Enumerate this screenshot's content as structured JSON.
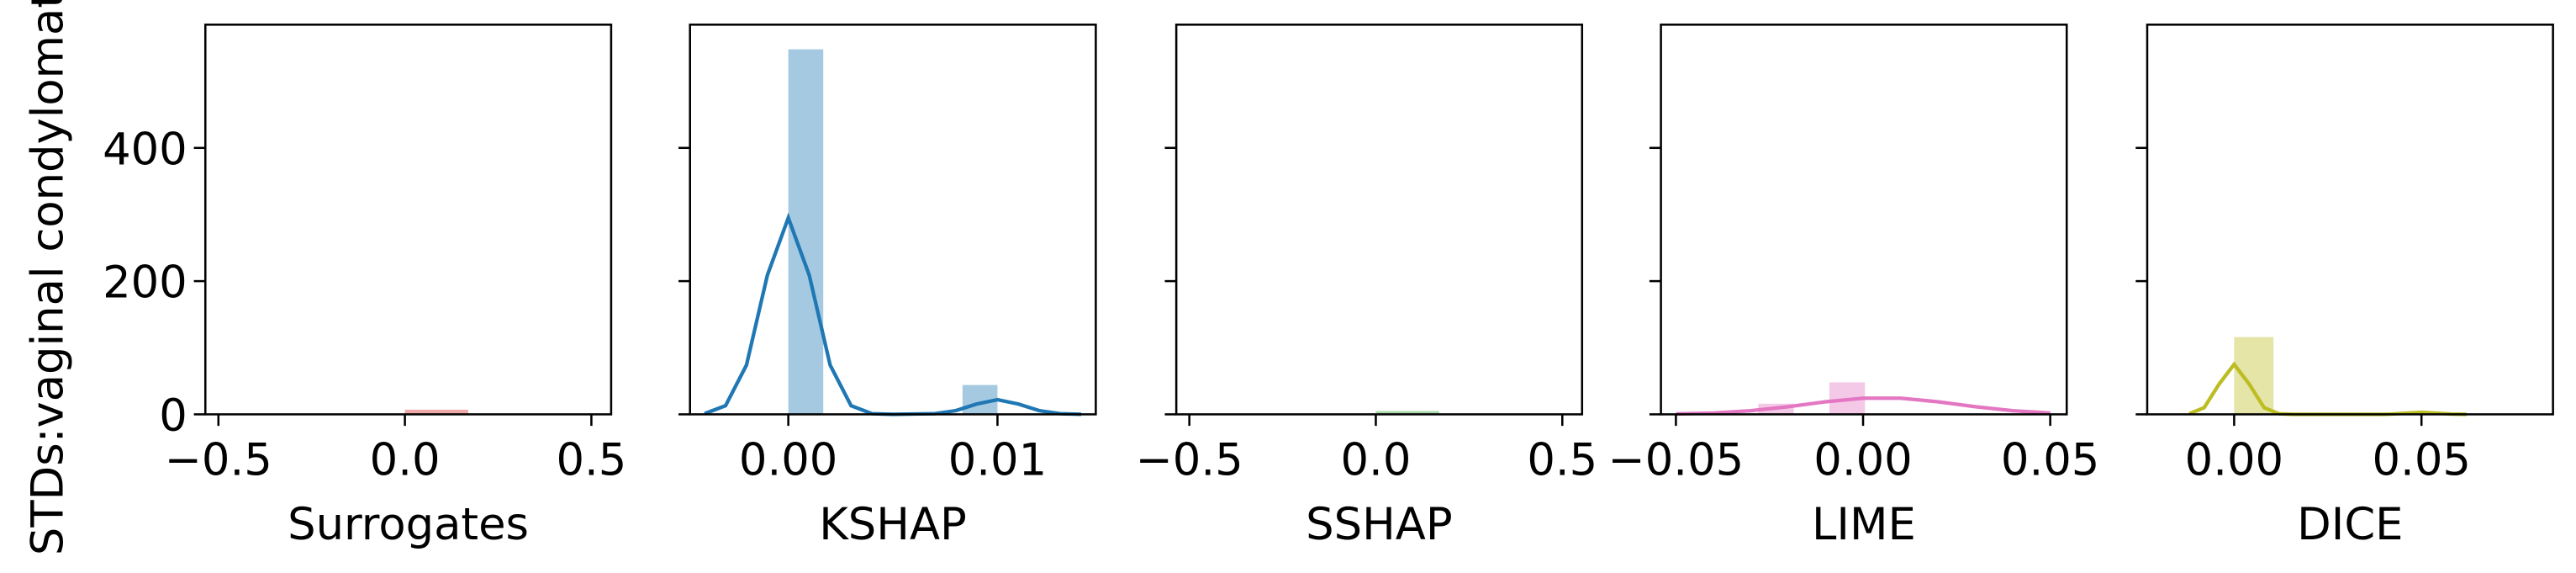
{
  "chart_data": [
    {
      "type": "histogram",
      "xlabel": "Surrogates",
      "ylabel": "STDs:vaginal condylomatosis",
      "color": "#d62728",
      "bins": [
        0,
        0.17
      ],
      "counts": [
        7
      ],
      "xlim": [
        -0.535,
        0.553
      ],
      "xticks": [
        {
          "value": -0.5,
          "label": "−0.5"
        },
        {
          "value": 0,
          "label": "0.0"
        },
        0.5
      ],
      "ylim": [
        0,
        585
      ],
      "yticks": [
        0,
        200,
        400
      ]
    },
    {
      "type": "histogram",
      "xlabel": "KSHAP",
      "color": "#1f77b4",
      "bins": [
        0,
        0.00167,
        0.00333,
        0.005,
        0.00667,
        0.00833,
        0.01
      ],
      "counts": [
        548,
        0,
        0,
        0,
        0,
        44
      ],
      "kde": {
        "x": [
          -0.004,
          -0.003,
          -0.002,
          -0.001,
          0,
          0.001,
          0.002,
          0.003,
          0.004,
          0.005,
          0.006,
          0.007,
          0.008,
          0.009,
          0.01,
          0.011,
          0.012,
          0.013,
          0.014
        ],
        "y": [
          1.1,
          13,
          74,
          209,
          295,
          209,
          74,
          13,
          1,
          0,
          0.5,
          1,
          5.5,
          15.5,
          22,
          15.5,
          5.5,
          1,
          0.1
        ]
      },
      "xlim": [
        -0.0047,
        0.0147
      ],
      "xticks": [
        {
          "value": 0,
          "label": "0.00"
        },
        0.01
      ],
      "ylim": [
        0,
        585
      ],
      "yticks": [
        0,
        200,
        400
      ]
    },
    {
      "type": "histogram",
      "xlabel": "SSHAP",
      "color": "#2ca02c",
      "bins": [
        0,
        0.17
      ],
      "counts": [
        5
      ],
      "xlim": [
        -0.535,
        0.553
      ],
      "xticks": [
        {
          "value": -0.5,
          "label": "−0.5"
        },
        {
          "value": 0,
          "label": "0.0"
        },
        0.5
      ],
      "ylim": [
        0,
        585
      ],
      "yticks": [
        0,
        200,
        400
      ]
    },
    {
      "type": "histogram",
      "xlabel": "LIME",
      "color": "#e377c2",
      "bins": [
        -0.028,
        -0.0185,
        -0.009,
        0.0005
      ],
      "counts": [
        16,
        0,
        48
      ],
      "kde": {
        "x": [
          -0.05,
          -0.04,
          -0.03,
          -0.02,
          -0.01,
          0,
          0.01,
          0.02,
          0.03,
          0.04,
          0.05
        ],
        "y": [
          0.6,
          2,
          5.4,
          11.4,
          18.9,
          24.2,
          24.2,
          18.9,
          11.4,
          5.4,
          2
        ]
      },
      "xlim": [
        -0.054,
        0.0544
      ],
      "xticks": [
        {
          "value": -0.05,
          "label": "−0.05"
        },
        {
          "value": 0,
          "label": "0.00"
        },
        0.05
      ],
      "ylim": [
        0,
        585
      ],
      "yticks": [
        0,
        200,
        400
      ]
    },
    {
      "type": "histogram",
      "xlabel": "DICE",
      "color": "#bcbd22",
      "bins": [
        0,
        0.0105
      ],
      "counts": [
        116
      ],
      "kde": {
        "x": [
          -0.012,
          -0.008,
          -0.004,
          0,
          0.004,
          0.008,
          0.012,
          0.016,
          0.02,
          0.03,
          0.04,
          0.042,
          0.046,
          0.05,
          0.054,
          0.058,
          0.062
        ],
        "y": [
          0.8,
          10,
          45.5,
          75,
          45.5,
          10,
          0.8,
          0,
          0,
          0,
          0,
          0.4,
          1.8,
          3,
          1.8,
          0.4,
          0
        ]
      },
      "xlim": [
        -0.0232,
        0.0851
      ],
      "xticks": [
        {
          "value": 0,
          "label": "0.00"
        },
        0.05
      ],
      "ylim": [
        0,
        585
      ],
      "yticks": [
        0,
        200,
        400
      ]
    }
  ]
}
